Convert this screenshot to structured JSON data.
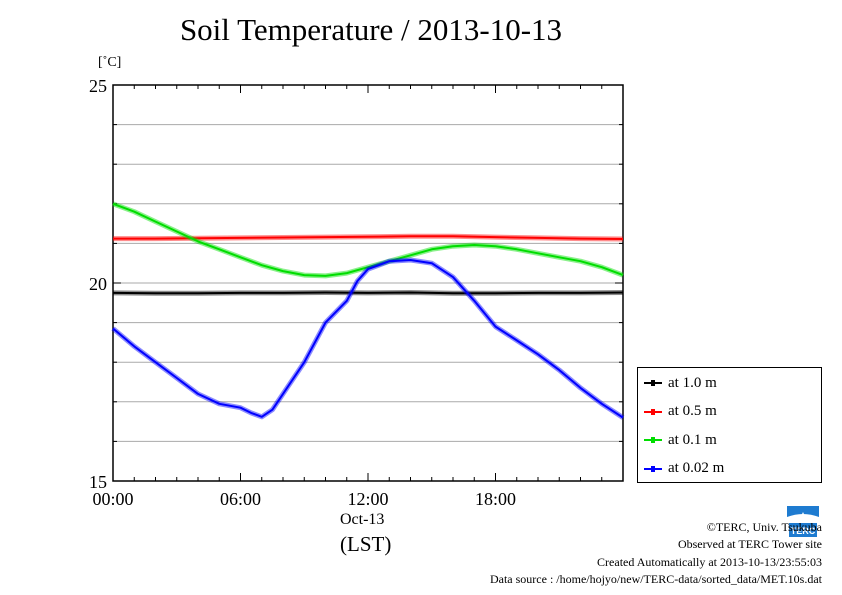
{
  "chart_data": {
    "type": "line",
    "title": "Soil Temperature / 2013-10-13",
    "ylabel": "[˚C]",
    "xlabel": "(LST)",
    "x_date_label": "Oct-13",
    "xlim": [
      0,
      24
    ],
    "ylim": [
      15,
      25
    ],
    "yticks": [
      15,
      20,
      25
    ],
    "ytick_labels": [
      "15",
      "20",
      "25"
    ],
    "xticks": [
      0,
      6,
      12,
      18
    ],
    "xtick_labels": [
      "00:00",
      "06:00",
      "12:00",
      "18:00"
    ],
    "grid": true,
    "legend_position": "lower-right outside",
    "series": [
      {
        "name": "at 1.0 m",
        "color": "#000000",
        "x": [
          0,
          2,
          4,
          6,
          8,
          10,
          12,
          14,
          16,
          18,
          20,
          22,
          24
        ],
        "y": [
          19.75,
          19.74,
          19.74,
          19.75,
          19.75,
          19.76,
          19.75,
          19.76,
          19.74,
          19.74,
          19.75,
          19.75,
          19.76
        ]
      },
      {
        "name": "at 0.5 m",
        "color": "#ff0000",
        "x": [
          0,
          2,
          4,
          6,
          8,
          10,
          12,
          14,
          16,
          18,
          20,
          22,
          24
        ],
        "y": [
          21.12,
          21.12,
          21.13,
          21.14,
          21.15,
          21.16,
          21.17,
          21.18,
          21.18,
          21.16,
          21.14,
          21.12,
          21.11
        ]
      },
      {
        "name": "at 0.1 m",
        "color": "#00dd00",
        "x": [
          0,
          1,
          2,
          3,
          4,
          5,
          6,
          7,
          8,
          9,
          10,
          11,
          12,
          13,
          14,
          15,
          16,
          17,
          18,
          19,
          20,
          21,
          22,
          23,
          24
        ],
        "y": [
          22.0,
          21.8,
          21.55,
          21.3,
          21.05,
          20.85,
          20.65,
          20.45,
          20.3,
          20.2,
          20.18,
          20.25,
          20.4,
          20.55,
          20.7,
          20.85,
          20.93,
          20.96,
          20.93,
          20.85,
          20.75,
          20.65,
          20.55,
          20.4,
          20.2
        ]
      },
      {
        "name": "at 0.02 m",
        "color": "#0000ff",
        "x": [
          0,
          1,
          2,
          3,
          4,
          5,
          6,
          6.5,
          7,
          7.5,
          8,
          9,
          10,
          11,
          11.5,
          12,
          13,
          14,
          15,
          16,
          17,
          18,
          19,
          20,
          21,
          22,
          23,
          24
        ],
        "y": [
          18.85,
          18.4,
          18.0,
          17.6,
          17.2,
          16.95,
          16.85,
          16.72,
          16.62,
          16.8,
          17.2,
          18.0,
          19.0,
          19.55,
          20.05,
          20.35,
          20.55,
          20.58,
          20.5,
          20.15,
          19.55,
          18.9,
          18.55,
          18.2,
          17.8,
          17.35,
          16.95,
          16.6
        ]
      }
    ]
  },
  "footer": {
    "copyright": "©TERC, Univ. Tsukuba",
    "observed": "Observed at TERC Tower site",
    "created": "Created Automatically at 2013-10-13/23:55:03",
    "source": "Data source : /home/hojyo/new/TERC-data/sorted_data/MET.10s.dat"
  },
  "logo": {
    "icon": "terc-logo-icon",
    "text": "TERC",
    "color": "#1e7bd0"
  }
}
